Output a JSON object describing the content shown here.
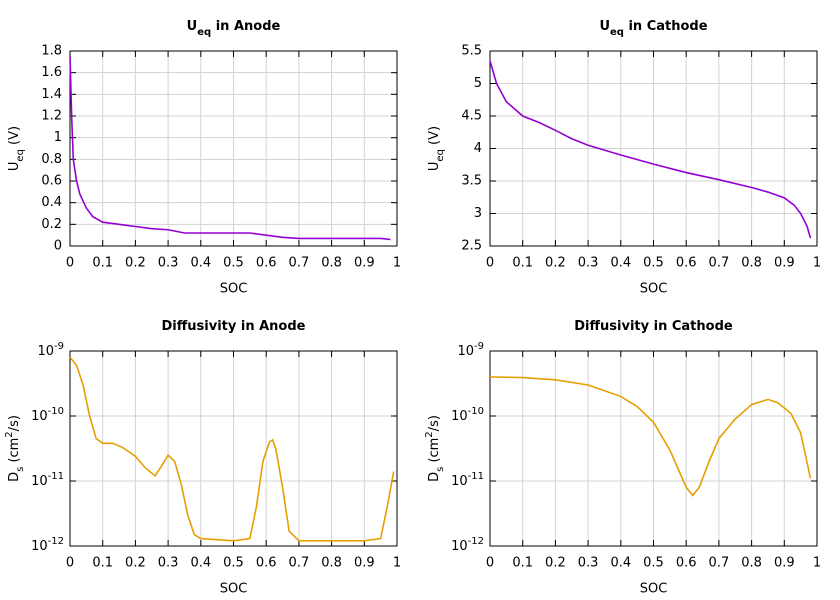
{
  "chart_data": [
    {
      "type": "line",
      "title": [
        "U",
        "eq",
        " in Anode"
      ],
      "xlabel": "SOC",
      "ylabel": [
        "U",
        "eq",
        " (V)"
      ],
      "color": "#9400d3",
      "xlim": [
        0,
        1
      ],
      "xticks": [
        0,
        0.1,
        0.2,
        0.3,
        0.4,
        0.5,
        0.6,
        0.7,
        0.8,
        0.9,
        1
      ],
      "ylim": [
        0,
        1.8
      ],
      "yticks": [
        0,
        0.2,
        0.4,
        0.6,
        0.8,
        1,
        1.2,
        1.4,
        1.6,
        1.8
      ],
      "grid": true,
      "x": [
        0,
        0.005,
        0.01,
        0.02,
        0.03,
        0.05,
        0.07,
        0.1,
        0.15,
        0.2,
        0.25,
        0.3,
        0.35,
        0.4,
        0.5,
        0.55,
        0.6,
        0.65,
        0.7,
        0.8,
        0.9,
        0.95,
        0.98
      ],
      "values": [
        1.75,
        1.2,
        0.8,
        0.6,
        0.48,
        0.35,
        0.27,
        0.22,
        0.2,
        0.18,
        0.16,
        0.15,
        0.12,
        0.12,
        0.12,
        0.12,
        0.1,
        0.08,
        0.07,
        0.07,
        0.07,
        0.07,
        0.06
      ]
    },
    {
      "type": "line",
      "title": [
        "U",
        "eq",
        " in Cathode"
      ],
      "xlabel": "SOC",
      "ylabel": [
        "U",
        "eq",
        " (V)"
      ],
      "color": "#9400d3",
      "xlim": [
        0,
        1
      ],
      "xticks": [
        0,
        0.1,
        0.2,
        0.3,
        0.4,
        0.5,
        0.6,
        0.7,
        0.8,
        0.9,
        1
      ],
      "ylim": [
        2.5,
        5.5
      ],
      "yticks": [
        2.5,
        3,
        3.5,
        4,
        4.5,
        5,
        5.5
      ],
      "grid": true,
      "x": [
        0,
        0.02,
        0.05,
        0.1,
        0.15,
        0.2,
        0.25,
        0.3,
        0.4,
        0.5,
        0.6,
        0.7,
        0.8,
        0.85,
        0.9,
        0.93,
        0.95,
        0.97,
        0.98
      ],
      "values": [
        5.35,
        5.0,
        4.72,
        4.5,
        4.4,
        4.28,
        4.15,
        4.05,
        3.9,
        3.76,
        3.63,
        3.52,
        3.4,
        3.33,
        3.24,
        3.13,
        3.0,
        2.8,
        2.62
      ]
    },
    {
      "type": "line",
      "title": [
        "Diffusivity in Anode"
      ],
      "xlabel": "SOC",
      "ylabel": [
        "D",
        "s",
        " (cm",
        "2",
        "/s)"
      ],
      "color": "#e69f00",
      "xlim": [
        0,
        1
      ],
      "xticks": [
        0,
        0.1,
        0.2,
        0.3,
        0.4,
        0.5,
        0.6,
        0.7,
        0.8,
        0.9,
        1
      ],
      "yscale": "log",
      "ylim": [
        1e-12,
        1e-09
      ],
      "yticks": [
        {
          "value": 1e-12,
          "label": [
            "10",
            "-12"
          ]
        },
        {
          "value": 1e-11,
          "label": [
            "10",
            "-11"
          ]
        },
        {
          "value": 1e-10,
          "label": [
            "10",
            "-10"
          ]
        },
        {
          "value": 1e-09,
          "label": [
            "10",
            "-9"
          ]
        }
      ],
      "grid": true,
      "x": [
        0,
        0.02,
        0.04,
        0.06,
        0.08,
        0.1,
        0.13,
        0.16,
        0.2,
        0.23,
        0.26,
        0.28,
        0.3,
        0.32,
        0.34,
        0.36,
        0.38,
        0.4,
        0.5,
        0.55,
        0.57,
        0.59,
        0.61,
        0.62,
        0.63,
        0.65,
        0.67,
        0.7,
        0.8,
        0.9,
        0.95,
        0.97,
        0.99
      ],
      "values": [
        8e-10,
        6e-10,
        3e-10,
        1e-10,
        4.5e-11,
        3.8e-11,
        3.8e-11,
        3.3e-11,
        2.4e-11,
        1.6e-11,
        1.2e-11,
        1.7e-11,
        2.5e-11,
        2e-11,
        9e-12,
        3e-12,
        1.5e-12,
        1.3e-12,
        1.2e-12,
        1.3e-12,
        4e-12,
        2e-11,
        4e-11,
        4.3e-11,
        3e-11,
        8e-12,
        1.7e-12,
        1.2e-12,
        1.2e-12,
        1.2e-12,
        1.3e-12,
        4e-12,
        1.4e-11
      ]
    },
    {
      "type": "line",
      "title": [
        "Diffusivity in Cathode"
      ],
      "xlabel": "SOC",
      "ylabel": [
        "D",
        "s",
        " (cm",
        "2",
        "/s)"
      ],
      "color": "#e69f00",
      "xlim": [
        0,
        1
      ],
      "xticks": [
        0,
        0.1,
        0.2,
        0.3,
        0.4,
        0.5,
        0.6,
        0.7,
        0.8,
        0.9,
        1
      ],
      "yscale": "log",
      "ylim": [
        1e-12,
        1e-09
      ],
      "yticks": [
        {
          "value": 1e-12,
          "label": [
            "10",
            "-12"
          ]
        },
        {
          "value": 1e-11,
          "label": [
            "10",
            "-11"
          ]
        },
        {
          "value": 1e-10,
          "label": [
            "10",
            "-10"
          ]
        },
        {
          "value": 1e-09,
          "label": [
            "10",
            "-9"
          ]
        }
      ],
      "grid": true,
      "x": [
        0,
        0.1,
        0.2,
        0.3,
        0.4,
        0.45,
        0.5,
        0.55,
        0.6,
        0.62,
        0.64,
        0.67,
        0.7,
        0.75,
        0.8,
        0.85,
        0.88,
        0.92,
        0.95,
        0.98
      ],
      "values": [
        4e-10,
        3.9e-10,
        3.6e-10,
        3e-10,
        2e-10,
        1.4e-10,
        8e-11,
        3e-11,
        8e-12,
        6e-12,
        8e-12,
        2e-11,
        4.5e-11,
        9e-11,
        1.5e-10,
        1.8e-10,
        1.6e-10,
        1.1e-10,
        5.5e-11,
        1.1e-11
      ]
    }
  ]
}
